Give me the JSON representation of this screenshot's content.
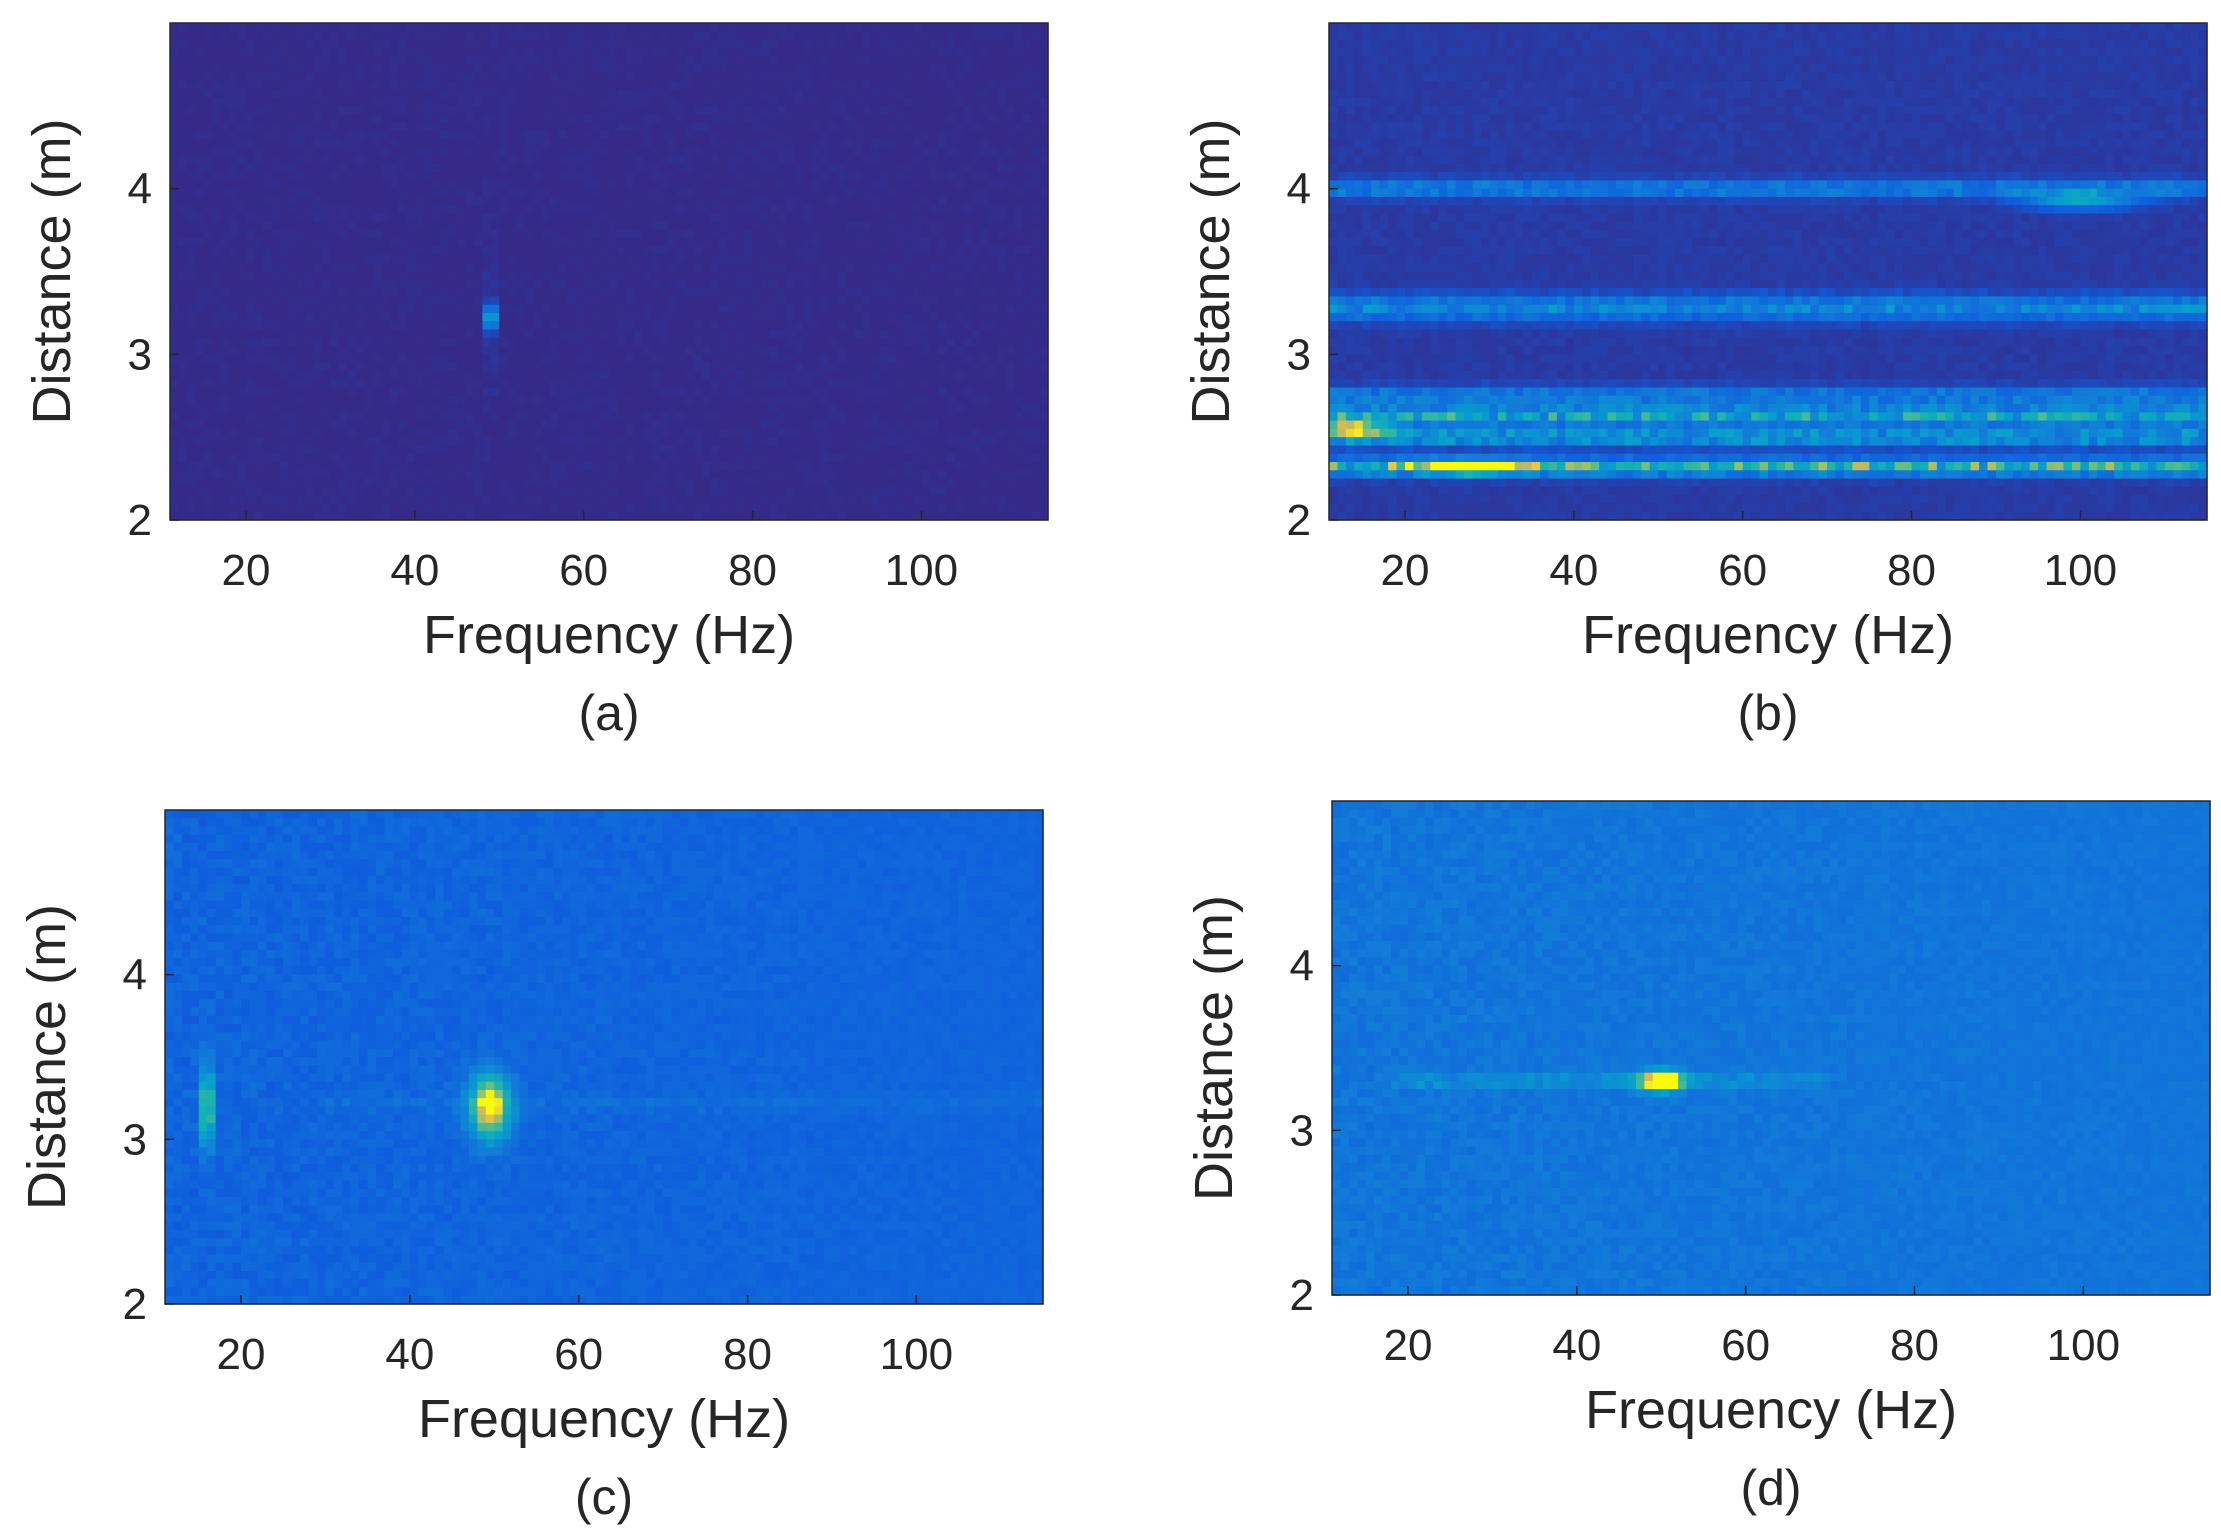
{
  "colors": {
    "background": "#352a87",
    "mid": "#1f8fd6",
    "high": "#ffd23c",
    "axis": "#262626"
  },
  "chart_data": [
    {
      "type": "heatmap",
      "panel_label": "(a)",
      "xlabel": "Frequency (Hz)",
      "ylabel": "Distance (m)",
      "xlim": [
        11,
        115
      ],
      "ylim": [
        2,
        5
      ],
      "xticks": [
        20,
        40,
        60,
        80,
        100
      ],
      "yticks": [
        2,
        3,
        4
      ],
      "colormap": "parula",
      "base_level": 0.0,
      "features": [
        {
          "kind": "spot",
          "f": 49,
          "d": 3.22,
          "width_hz": 0.6,
          "height_m": 0.07,
          "intensity": 0.85
        },
        {
          "kind": "spot",
          "f": 49,
          "d": 3.22,
          "width_hz": 0.4,
          "height_m": 0.45,
          "intensity": 0.15
        }
      ]
    },
    {
      "type": "heatmap",
      "panel_label": "(b)",
      "xlabel": "Frequency (Hz)",
      "ylabel": "Distance (m)",
      "xlim": [
        11,
        115
      ],
      "ylim": [
        2,
        5
      ],
      "xticks": [
        20,
        40,
        60,
        80,
        100
      ],
      "yticks": [
        2,
        3,
        4
      ],
      "colormap": "parula",
      "base_level": 0.05,
      "features": [
        {
          "kind": "band",
          "d": 4.0,
          "height_m": 0.05,
          "f_from": 11,
          "f_to": 115,
          "intensity": 0.3
        },
        {
          "kind": "band",
          "d": 3.28,
          "height_m": 0.07,
          "f_from": 11,
          "f_to": 115,
          "intensity": 0.35
        },
        {
          "kind": "band",
          "d": 2.75,
          "height_m": 0.05,
          "f_from": 11,
          "f_to": 115,
          "intensity": 0.3
        },
        {
          "kind": "band",
          "d": 2.63,
          "height_m": 0.06,
          "f_from": 11,
          "f_to": 115,
          "intensity": 0.5
        },
        {
          "kind": "band",
          "d": 2.5,
          "height_m": 0.05,
          "f_from": 11,
          "f_to": 115,
          "intensity": 0.45
        },
        {
          "kind": "band",
          "d": 2.32,
          "height_m": 0.05,
          "f_from": 11,
          "f_to": 115,
          "intensity": 0.6
        },
        {
          "kind": "spot",
          "f": 28,
          "d": 2.32,
          "width_hz": 6,
          "height_m": 0.04,
          "intensity": 0.85
        },
        {
          "kind": "spot",
          "f": 14,
          "d": 2.55,
          "width_hz": 4,
          "height_m": 0.05,
          "intensity": 0.75
        },
        {
          "kind": "spot",
          "f": 100,
          "d": 3.93,
          "width_hz": 6,
          "height_m": 0.05,
          "intensity": 0.5
        }
      ]
    },
    {
      "type": "heatmap",
      "panel_label": "(c)",
      "xlabel": "Frequency (Hz)",
      "ylabel": "Distance (m)",
      "xlim": [
        11,
        115
      ],
      "ylim": [
        2,
        5
      ],
      "xticks": [
        20,
        40,
        60,
        80,
        100
      ],
      "yticks": [
        2,
        3,
        4
      ],
      "colormap": "parula",
      "base_level": 0.2,
      "features": [
        {
          "kind": "spot",
          "f": 16,
          "d": 3.2,
          "width_hz": 0.8,
          "height_m": 0.25,
          "intensity": 0.7
        },
        {
          "kind": "spot",
          "f": 49.5,
          "d": 3.2,
          "width_hz": 2.5,
          "height_m": 0.2,
          "intensity": 0.85
        },
        {
          "kind": "band",
          "d": 3.22,
          "height_m": 0.05,
          "f_from": 30,
          "f_to": 115,
          "intensity": 0.05
        }
      ]
    },
    {
      "type": "heatmap",
      "panel_label": "(d)",
      "xlabel": "Frequency (Hz)",
      "ylabel": "Distance (m)",
      "xlim": [
        11,
        115
      ],
      "ylim": [
        2,
        5
      ],
      "xticks": [
        20,
        40,
        60,
        80,
        100
      ],
      "yticks": [
        2,
        3,
        4
      ],
      "colormap": "parula",
      "base_level": 0.3,
      "features": [
        {
          "kind": "spot",
          "f": 50,
          "d": 3.3,
          "width_hz": 2.5,
          "height_m": 0.06,
          "intensity": 0.95
        },
        {
          "kind": "band",
          "d": 3.3,
          "height_m": 0.04,
          "f_from": 18,
          "f_to": 70,
          "intensity": 0.15
        }
      ]
    }
  ]
}
